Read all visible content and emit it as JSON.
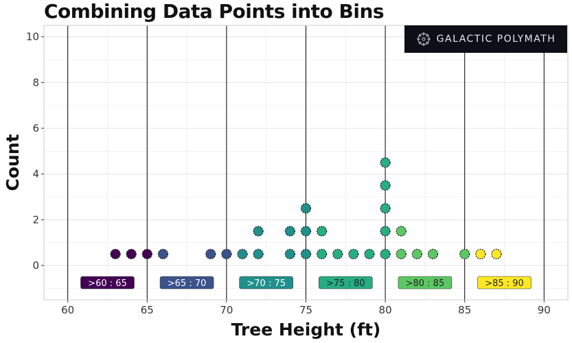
{
  "chart_data": {
    "type": "scatter",
    "title": "Combining Data Points into Bins",
    "xlabel": "Tree Height (ft)",
    "ylabel": "Count",
    "xlim": [
      58.5,
      91.5
    ],
    "ylim": [
      -1.5,
      10.5
    ],
    "x_ticks": [
      60,
      65,
      70,
      75,
      80,
      85,
      90
    ],
    "y_ticks": [
      0,
      2,
      4,
      6,
      8,
      10
    ],
    "grid": true,
    "bin_edges": [
      60,
      65,
      70,
      75,
      80,
      85,
      90
    ],
    "bins": [
      {
        "label": ">60 : 65",
        "center": 62.5,
        "color": "#440154",
        "text_color": "#ffffff"
      },
      {
        "label": ">65 : 70",
        "center": 67.5,
        "color": "#3b528b",
        "text_color": "#ffffff"
      },
      {
        "label": ">70 : 75",
        "center": 72.5,
        "color": "#21908c",
        "text_color": "#ffffff"
      },
      {
        "label": ">75 : 80",
        "center": 77.5,
        "color": "#27ad81",
        "text_color": "#222222"
      },
      {
        "label": ">80 : 85",
        "center": 82.5,
        "color": "#5dc863",
        "text_color": "#222222"
      },
      {
        "label": ">85 : 90",
        "center": 87.5,
        "color": "#fde725",
        "text_color": "#222222"
      }
    ],
    "points": [
      {
        "x": 63,
        "y": 0.5
      },
      {
        "x": 64,
        "y": 0.5
      },
      {
        "x": 65,
        "y": 0.5
      },
      {
        "x": 66,
        "y": 0.5
      },
      {
        "x": 69,
        "y": 0.5
      },
      {
        "x": 70,
        "y": 0.5
      },
      {
        "x": 71,
        "y": 0.5
      },
      {
        "x": 72,
        "y": 0.5
      },
      {
        "x": 72,
        "y": 1.5
      },
      {
        "x": 74,
        "y": 0.5
      },
      {
        "x": 74,
        "y": 1.5
      },
      {
        "x": 75,
        "y": 0.5
      },
      {
        "x": 75,
        "y": 1.5
      },
      {
        "x": 75,
        "y": 2.5
      },
      {
        "x": 76,
        "y": 0.5
      },
      {
        "x": 76,
        "y": 1.5
      },
      {
        "x": 77,
        "y": 0.5
      },
      {
        "x": 78,
        "y": 0.5
      },
      {
        "x": 79,
        "y": 0.5
      },
      {
        "x": 80,
        "y": 0.5
      },
      {
        "x": 80,
        "y": 1.5
      },
      {
        "x": 80,
        "y": 2.5
      },
      {
        "x": 80,
        "y": 3.5
      },
      {
        "x": 80,
        "y": 4.5
      },
      {
        "x": 81,
        "y": 0.5
      },
      {
        "x": 81,
        "y": 1.5
      },
      {
        "x": 82,
        "y": 0.5
      },
      {
        "x": 83,
        "y": 0.5
      },
      {
        "x": 85,
        "y": 0.5
      },
      {
        "x": 86,
        "y": 0.5
      },
      {
        "x": 87,
        "y": 0.5
      }
    ],
    "colors": {
      "panel_border": "#cccccc",
      "grid": "#e6e6e6",
      "bin_line": "#000000",
      "point_outline": "#111111"
    }
  },
  "logo": {
    "text": "GALACTIC POLYMATH"
  }
}
